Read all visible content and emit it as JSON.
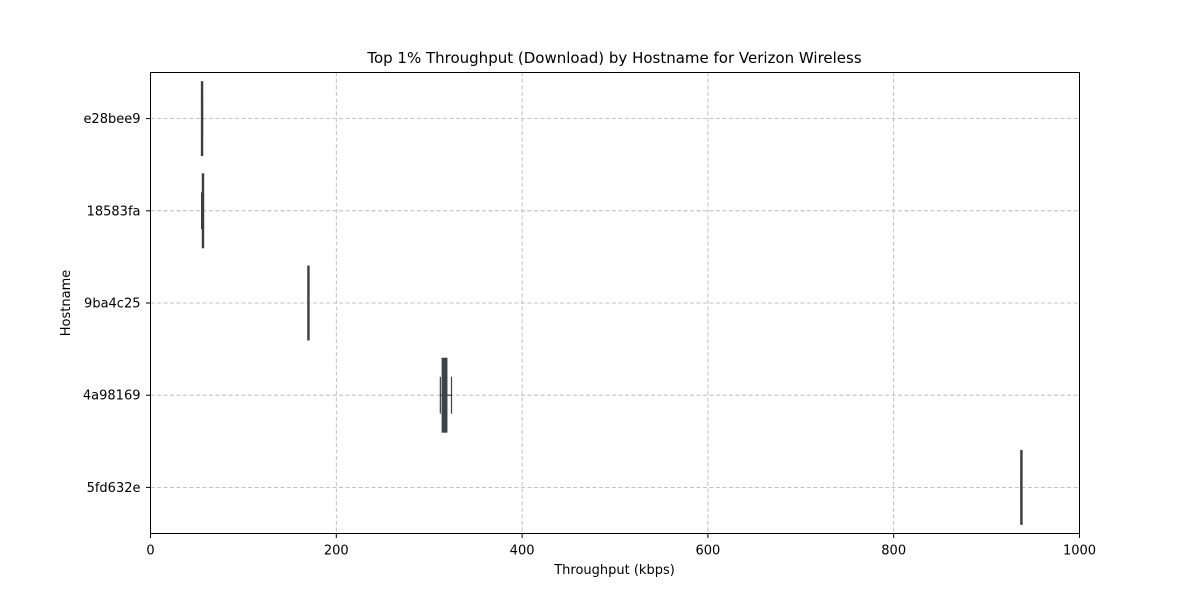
{
  "chart_data": {
    "type": "boxplot",
    "orientation": "horizontal",
    "title": "Top 1% Throughput (Download) by Hostname for Verizon Wireless",
    "xlabel": "Throughput (kbps)",
    "ylabel": "Hostname",
    "xlim": [
      0,
      1000
    ],
    "xticks": [
      0,
      200,
      400,
      600,
      800,
      1000
    ],
    "xtick_labels": [
      "0",
      "200",
      "400",
      "600",
      "800",
      "1000"
    ],
    "grid": true,
    "categories": [
      "e28bee9",
      "18583fa",
      "9ba4c25",
      "4a98169",
      "5fd632e"
    ],
    "boxes": [
      {
        "category": "e28bee9",
        "whisker_low": 55,
        "q1": 55,
        "median": 55,
        "q3": 56,
        "whisker_high": 56
      },
      {
        "category": "18583fa",
        "whisker_low": 55,
        "q1": 56,
        "median": 56,
        "q3": 57,
        "whisker_high": 57
      },
      {
        "category": "9ba4c25",
        "whisker_low": 170,
        "q1": 170,
        "median": 170,
        "q3": 170,
        "whisker_high": 170
      },
      {
        "category": "4a98169",
        "whisker_low": 312,
        "q1": 314,
        "median": 317,
        "q3": 319,
        "whisker_high": 324
      },
      {
        "category": "5fd632e",
        "whisker_low": 937,
        "q1": 937,
        "median": 937,
        "q3": 938,
        "whisker_high": 938
      }
    ],
    "colors": {
      "box_fill": "#34495e",
      "box_edge": "#3f3f3f",
      "grid": "#b0b0b0",
      "frame": "#000000"
    }
  }
}
